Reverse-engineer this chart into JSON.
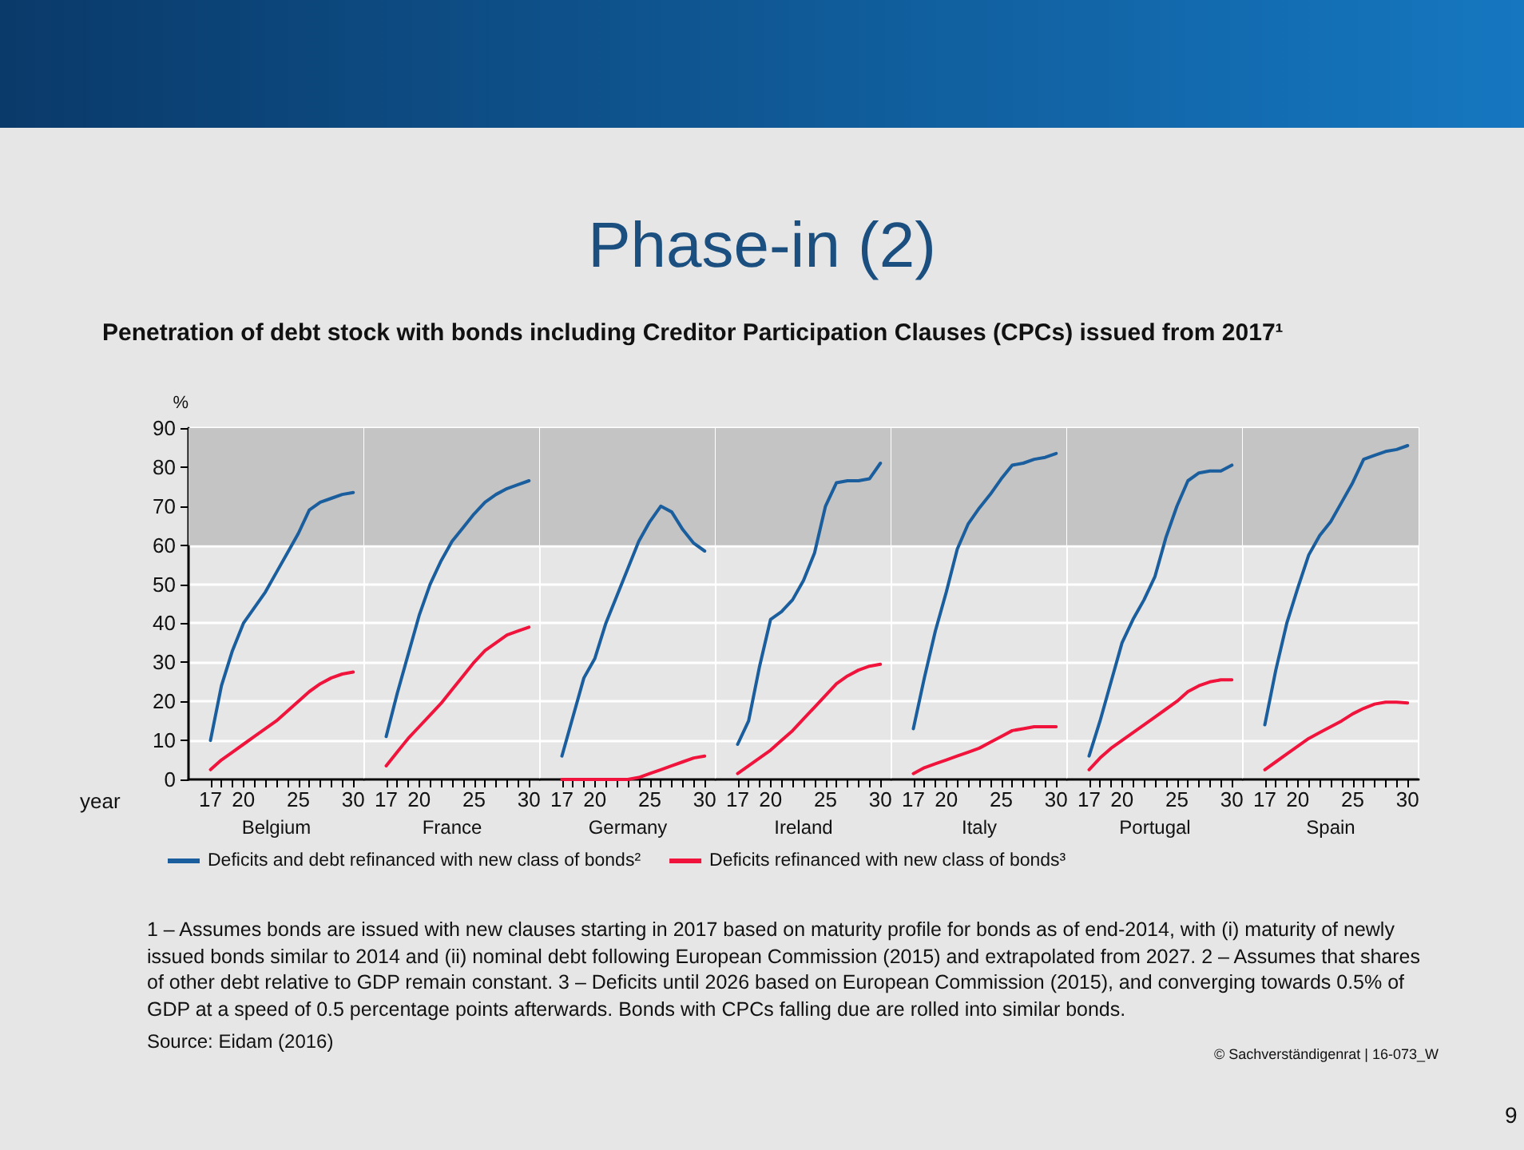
{
  "chart_data": [
    {
      "type": "line",
      "subtitle": "Penetration of debt stock with bonds including Creditor Participation Clauses (CPCs) issued from 2017¹",
      "ylabel": "%",
      "xlabel": "Belgium",
      "legend": "bottom",
      "grid": "y",
      "marker": "none",
      "annotations": [
        "year",
        "1 – Assumes bonds are issued with new clauses starting in 2017 based on maturity profile for bonds as of end-2014, with (i) maturity of newly issued bonds similar to 2014 and (ii) nominal debt following European Commission (2015) and extrapolated from 2027.  2 – Assumes that shares of other debt relative to GDP remain constant.  3 – Deficits until 2026 based on European Commission (2015), and converging towards 0.5% of GDP at a speed of 0.5 percentage points afterwards. Bonds with CPCs falling due are rolled into similar bonds.",
        "Source: Eidam (2016)",
        "© Sachverständigenrat | 16-073_W",
        "9"
      ],
      "bands": [
        {
          "axis": "y",
          "from": 60,
          "to": 90,
          "color": "#c4c4c4"
        }
      ],
      "x": [
        17,
        18,
        19,
        20,
        21,
        22,
        23,
        24,
        25,
        26,
        27,
        28,
        29,
        30
      ],
      "xlim": [
        15,
        31
      ],
      "xticks": [
        17,
        {
          "value": 18,
          "label": null
        },
        {
          "value": 19,
          "label": null
        },
        20,
        {
          "value": 21,
          "label": null
        },
        {
          "value": 22,
          "label": null
        },
        {
          "value": 23,
          "label": null
        },
        {
          "value": 24,
          "label": null
        },
        25,
        {
          "value": 26,
          "label": null
        },
        {
          "value": 27,
          "label": null
        },
        {
          "value": 28,
          "label": null
        },
        {
          "value": 29,
          "label": null
        },
        30
      ],
      "ylim": [
        0,
        90
      ],
      "yticks": [
        0,
        10,
        20,
        30,
        40,
        50,
        60,
        70,
        80,
        90
      ],
      "series": [
        {
          "name": "Deficits and debt refinanced with new class of bonds²",
          "color": "#1a5e9e",
          "values": [
            10,
            24,
            33,
            40,
            44,
            48,
            53,
            58,
            63,
            69,
            71,
            72,
            73,
            73.5
          ]
        },
        {
          "name": "Deficits refinanced with new class of bonds³",
          "color": "#f0143c",
          "values": [
            2.5,
            5,
            7,
            9,
            11,
            13,
            15,
            17.5,
            20,
            22.5,
            24.5,
            26,
            27,
            27.5
          ]
        }
      ]
    },
    {
      "type": "line",
      "xlabel": "France",
      "tick_labels": "x",
      "grid": "y",
      "marker": "none",
      "bands": [
        {
          "axis": "y",
          "from": 60,
          "to": 90,
          "color": "#c4c4c4"
        }
      ],
      "x": [
        17,
        18,
        19,
        20,
        21,
        22,
        23,
        24,
        25,
        26,
        27,
        28,
        29,
        30
      ],
      "xlim": [
        15,
        31
      ],
      "xticks": [
        17,
        {
          "value": 18,
          "label": null
        },
        {
          "value": 19,
          "label": null
        },
        20,
        {
          "value": 21,
          "label": null
        },
        {
          "value": 22,
          "label": null
        },
        {
          "value": 23,
          "label": null
        },
        {
          "value": 24,
          "label": null
        },
        25,
        {
          "value": 26,
          "label": null
        },
        {
          "value": 27,
          "label": null
        },
        {
          "value": 28,
          "label": null
        },
        {
          "value": 29,
          "label": null
        },
        30
      ],
      "ylim": [
        0,
        90
      ],
      "yticks": [
        0,
        10,
        20,
        30,
        40,
        50,
        60,
        70,
        80,
        90
      ],
      "series": [
        {
          "color": "#1a5e9e",
          "values": [
            11,
            22,
            32,
            42,
            50,
            56,
            61,
            64.5,
            68,
            71,
            73,
            74.5,
            75.5,
            76.5
          ]
        },
        {
          "color": "#f0143c",
          "values": [
            3.5,
            7,
            10.5,
            13.5,
            16.5,
            19.5,
            23,
            26.5,
            30,
            33,
            35,
            37,
            38,
            39
          ]
        }
      ]
    },
    {
      "type": "line",
      "xlabel": "Germany",
      "tick_labels": "x",
      "grid": "y",
      "marker": "none",
      "bands": [
        {
          "axis": "y",
          "from": 60,
          "to": 90,
          "color": "#c4c4c4"
        }
      ],
      "x": [
        17,
        18,
        19,
        20,
        21,
        22,
        23,
        24,
        25,
        26,
        27,
        28,
        29,
        30
      ],
      "xlim": [
        15,
        31
      ],
      "xticks": [
        17,
        {
          "value": 18,
          "label": null
        },
        {
          "value": 19,
          "label": null
        },
        20,
        {
          "value": 21,
          "label": null
        },
        {
          "value": 22,
          "label": null
        },
        {
          "value": 23,
          "label": null
        },
        {
          "value": 24,
          "label": null
        },
        25,
        {
          "value": 26,
          "label": null
        },
        {
          "value": 27,
          "label": null
        },
        {
          "value": 28,
          "label": null
        },
        {
          "value": 29,
          "label": null
        },
        30
      ],
      "ylim": [
        0,
        90
      ],
      "yticks": [
        0,
        10,
        20,
        30,
        40,
        50,
        60,
        70,
        80,
        90
      ],
      "series": [
        {
          "color": "#1a5e9e",
          "values": [
            6,
            16,
            26,
            31,
            40,
            47,
            54,
            61,
            66,
            70,
            68.5,
            64,
            60.5,
            58.5
          ]
        },
        {
          "color": "#f0143c",
          "values": [
            0,
            0,
            0,
            0,
            0,
            0,
            0,
            0.5,
            1.5,
            2.5,
            3.5,
            4.5,
            5.5,
            6
          ]
        }
      ]
    },
    {
      "type": "line",
      "title": "Phase-in (2)",
      "xlabel": "Ireland",
      "tick_labels": "x",
      "grid": "y",
      "marker": "none",
      "bands": [
        {
          "axis": "y",
          "from": 60,
          "to": 90,
          "color": "#c4c4c4"
        }
      ],
      "x": [
        17,
        18,
        19,
        20,
        21,
        22,
        23,
        24,
        25,
        26,
        27,
        28,
        29,
        30
      ],
      "xlim": [
        15,
        31
      ],
      "xticks": [
        17,
        {
          "value": 18,
          "label": null
        },
        {
          "value": 19,
          "label": null
        },
        20,
        {
          "value": 21,
          "label": null
        },
        {
          "value": 22,
          "label": null
        },
        {
          "value": 23,
          "label": null
        },
        {
          "value": 24,
          "label": null
        },
        25,
        {
          "value": 26,
          "label": null
        },
        {
          "value": 27,
          "label": null
        },
        {
          "value": 28,
          "label": null
        },
        {
          "value": 29,
          "label": null
        },
        30
      ],
      "ylim": [
        0,
        90
      ],
      "yticks": [
        0,
        10,
        20,
        30,
        40,
        50,
        60,
        70,
        80,
        90
      ],
      "series": [
        {
          "color": "#1a5e9e",
          "values": [
            9,
            15,
            29,
            41,
            43,
            46,
            51,
            58,
            70,
            76,
            76.5,
            76.5,
            77,
            81
          ]
        },
        {
          "color": "#f0143c",
          "values": [
            1.5,
            3.5,
            5.5,
            7.5,
            10,
            12.5,
            15.5,
            18.5,
            21.5,
            24.5,
            26.5,
            28,
            29,
            29.5
          ]
        }
      ]
    },
    {
      "type": "line",
      "xlabel": "Italy",
      "tick_labels": "x",
      "grid": "y",
      "marker": "none",
      "bands": [
        {
          "axis": "y",
          "from": 60,
          "to": 90,
          "color": "#c4c4c4"
        }
      ],
      "x": [
        17,
        18,
        19,
        20,
        21,
        22,
        23,
        24,
        25,
        26,
        27,
        28,
        29,
        30
      ],
      "xlim": [
        15,
        31
      ],
      "xticks": [
        17,
        {
          "value": 18,
          "label": null
        },
        {
          "value": 19,
          "label": null
        },
        20,
        {
          "value": 21,
          "label": null
        },
        {
          "value": 22,
          "label": null
        },
        {
          "value": 23,
          "label": null
        },
        {
          "value": 24,
          "label": null
        },
        25,
        {
          "value": 26,
          "label": null
        },
        {
          "value": 27,
          "label": null
        },
        {
          "value": 28,
          "label": null
        },
        {
          "value": 29,
          "label": null
        },
        30
      ],
      "ylim": [
        0,
        90
      ],
      "yticks": [
        0,
        10,
        20,
        30,
        40,
        50,
        60,
        70,
        80,
        90
      ],
      "series": [
        {
          "color": "#1a5e9e",
          "values": [
            13,
            26,
            38,
            48,
            59,
            65.5,
            69.5,
            73,
            77,
            80.5,
            81,
            82,
            82.5,
            83.5
          ]
        },
        {
          "color": "#f0143c",
          "values": [
            1.5,
            3,
            4,
            5,
            6,
            7,
            8,
            9.5,
            11,
            12.5,
            13,
            13.5,
            13.5,
            13.5
          ]
        }
      ]
    },
    {
      "type": "line",
      "xlabel": "Portugal",
      "tick_labels": "x",
      "grid": "y",
      "marker": "none",
      "bands": [
        {
          "axis": "y",
          "from": 60,
          "to": 90,
          "color": "#c4c4c4"
        }
      ],
      "x": [
        17,
        18,
        19,
        20,
        21,
        22,
        23,
        24,
        25,
        26,
        27,
        28,
        29,
        30
      ],
      "xlim": [
        15,
        31
      ],
      "xticks": [
        17,
        {
          "value": 18,
          "label": null
        },
        {
          "value": 19,
          "label": null
        },
        20,
        {
          "value": 21,
          "label": null
        },
        {
          "value": 22,
          "label": null
        },
        {
          "value": 23,
          "label": null
        },
        {
          "value": 24,
          "label": null
        },
        25,
        {
          "value": 26,
          "label": null
        },
        {
          "value": 27,
          "label": null
        },
        {
          "value": 28,
          "label": null
        },
        {
          "value": 29,
          "label": null
        },
        30
      ],
      "ylim": [
        0,
        90
      ],
      "yticks": [
        0,
        10,
        20,
        30,
        40,
        50,
        60,
        70,
        80,
        90
      ],
      "series": [
        {
          "color": "#1a5e9e",
          "values": [
            6,
            15,
            25,
            35,
            41,
            46,
            52,
            62,
            70,
            76.5,
            78.5,
            79,
            79,
            80.5
          ]
        },
        {
          "color": "#f0143c",
          "values": [
            2.5,
            5.5,
            8,
            10,
            12,
            14,
            16,
            18,
            20,
            22.5,
            24,
            25,
            25.5,
            25.5
          ]
        }
      ]
    },
    {
      "type": "line",
      "xlabel": "Spain",
      "tick_labels": "x",
      "grid": "y",
      "marker": "none",
      "bands": [
        {
          "axis": "y",
          "from": 60,
          "to": 90,
          "color": "#c4c4c4"
        }
      ],
      "x": [
        17,
        18,
        19,
        20,
        21,
        22,
        23,
        24,
        25,
        26,
        27,
        28,
        29,
        30
      ],
      "xlim": [
        15,
        31
      ],
      "xticks": [
        17,
        {
          "value": 18,
          "label": null
        },
        {
          "value": 19,
          "label": null
        },
        20,
        {
          "value": 21,
          "label": null
        },
        {
          "value": 22,
          "label": null
        },
        {
          "value": 23,
          "label": null
        },
        {
          "value": 24,
          "label": null
        },
        25,
        {
          "value": 26,
          "label": null
        },
        {
          "value": 27,
          "label": null
        },
        {
          "value": 28,
          "label": null
        },
        {
          "value": 29,
          "label": null
        },
        30
      ],
      "ylim": [
        0,
        90
      ],
      "yticks": [
        0,
        10,
        20,
        30,
        40,
        50,
        60,
        70,
        80,
        90
      ],
      "series": [
        {
          "color": "#1a5e9e",
          "values": [
            14,
            28,
            40,
            49,
            57.5,
            62.5,
            66,
            71,
            76,
            82,
            83,
            84,
            84.5,
            85.5
          ]
        },
        {
          "color": "#f0143c",
          "values": [
            2.5,
            4.5,
            6.5,
            8.5,
            10.5,
            12,
            13.5,
            15,
            16.8,
            18.2,
            19.3,
            19.8,
            19.8,
            19.6
          ]
        }
      ]
    }
  ]
}
